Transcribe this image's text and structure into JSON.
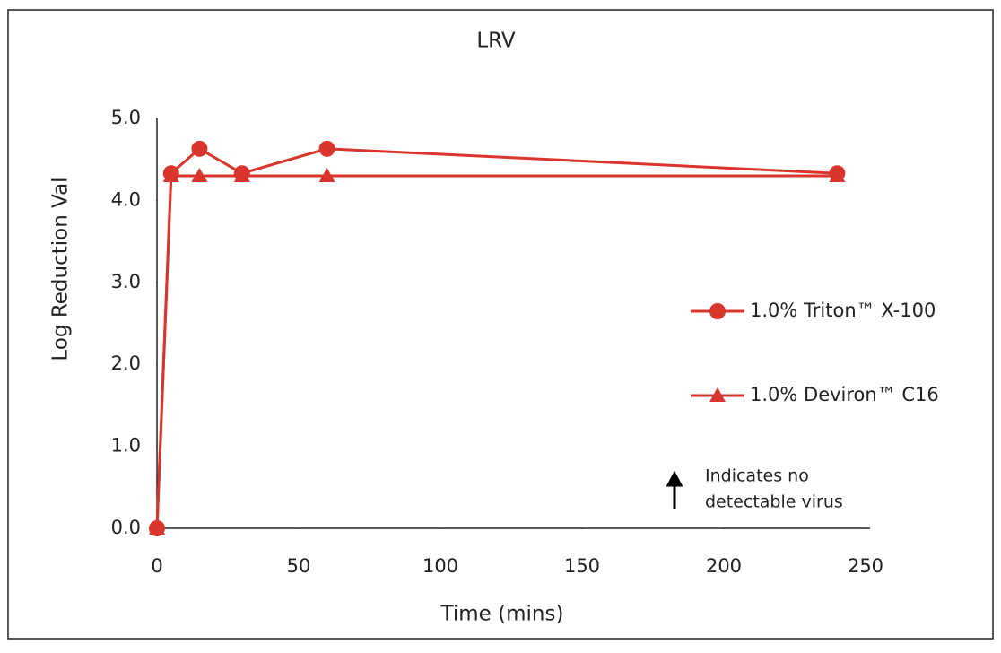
{
  "chart_data": {
    "type": "line",
    "title": "LRV",
    "x_label": "Time (mins)",
    "y_label": "Log Reduction Val",
    "x": [
      0,
      5,
      15,
      30,
      60,
      240
    ],
    "series": [
      {
        "name": "1.0% Triton™ X-100",
        "color": "#d9352c",
        "marker": "circle",
        "values": [
          0,
          4.33,
          4.63,
          4.33,
          4.63,
          4.33
        ]
      },
      {
        "name": "1.0% Deviron™ C16",
        "color": "#d9352c",
        "marker": "triangle",
        "values": [
          0,
          4.3,
          4.3,
          4.3,
          4.3,
          4.3
        ]
      }
    ],
    "xlim": [
      0,
      250
    ],
    "xticks": [
      0,
      50,
      100,
      150,
      200,
      250
    ],
    "ylim": [
      0,
      5
    ],
    "yticks": [
      {
        "value": 0,
        "label": "0.0"
      },
      {
        "value": 1,
        "label": "1.0"
      },
      {
        "value": 2,
        "label": "2.0"
      },
      {
        "value": 3,
        "label": "3.0"
      },
      {
        "value": 4,
        "label": "4.0"
      },
      {
        "value": 5,
        "label": "5.0"
      }
    ],
    "grid": false,
    "annotation": [
      "Indicates no",
      "detectable virus"
    ]
  }
}
